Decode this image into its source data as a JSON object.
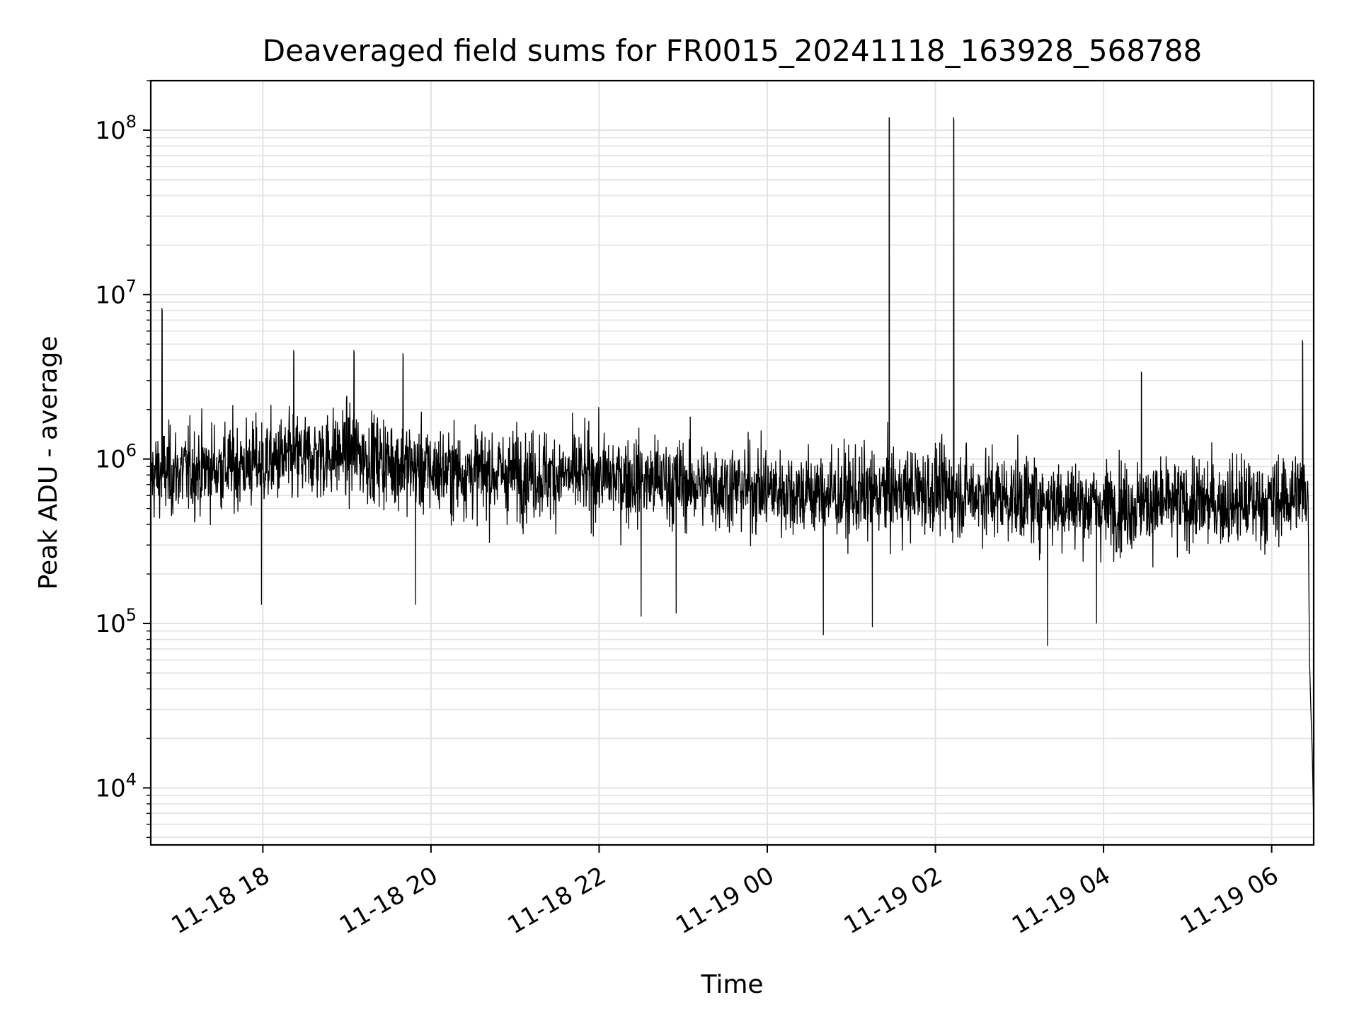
{
  "chart_data": {
    "type": "line",
    "title": "Deaveraged field sums for FR0015_20241118_163928_568788",
    "xlabel": "Time",
    "ylabel": "Peak ADU - average",
    "x_scale": "time",
    "y_scale": "log",
    "xlim": [
      "2024-11-18 16:40",
      "2024-11-19 06:30"
    ],
    "ylim": [
      4500,
      200000000
    ],
    "grid": true,
    "x_ticks": [
      {
        "value": "2024-11-18 18:00",
        "label": "11-18 18"
      },
      {
        "value": "2024-11-18 20:00",
        "label": "11-18 20"
      },
      {
        "value": "2024-11-18 22:00",
        "label": "11-18 22"
      },
      {
        "value": "2024-11-19 00:00",
        "label": "11-19 00"
      },
      {
        "value": "2024-11-19 02:00",
        "label": "11-19 02"
      },
      {
        "value": "2024-11-19 04:00",
        "label": "11-19 04"
      },
      {
        "value": "2024-11-19 06:00",
        "label": "11-19 06"
      }
    ],
    "y_ticks": [
      {
        "value": 10000,
        "base": "10",
        "exp": "4"
      },
      {
        "value": 100000,
        "base": "10",
        "exp": "5"
      },
      {
        "value": 1000000,
        "base": "10",
        "exp": "6"
      },
      {
        "value": 10000000,
        "base": "10",
        "exp": "7"
      },
      {
        "value": 100000000,
        "base": "10",
        "exp": "8"
      }
    ],
    "series": [
      {
        "color": "#000000",
        "baseline": [
          [
            "2024-11-18 16:40",
            800000
          ],
          [
            "2024-11-18 18:00",
            950000
          ],
          [
            "2024-11-18 19:00",
            1100000
          ],
          [
            "2024-11-18 20:00",
            850000
          ],
          [
            "2024-11-18 22:00",
            780000
          ],
          [
            "2024-11-19 00:00",
            650000
          ],
          [
            "2024-11-19 01:00",
            600000
          ],
          [
            "2024-11-19 02:00",
            650000
          ],
          [
            "2024-11-19 04:00",
            520000
          ],
          [
            "2024-11-19 06:00",
            550000
          ],
          [
            "2024-11-19 06:25",
            650000
          ]
        ],
        "spikes": [
          [
            "2024-11-18 16:48",
            8300000
          ],
          [
            "2024-11-18 18:22",
            4600000
          ],
          [
            "2024-11-18 19:05",
            4600000
          ],
          [
            "2024-11-18 19:40",
            4400000
          ],
          [
            "2024-11-19 01:27",
            120000000
          ],
          [
            "2024-11-19 02:13",
            120000000
          ],
          [
            "2024-11-19 04:27",
            3400000
          ],
          [
            "2024-11-19 06:22",
            5300000
          ]
        ],
        "dips": [
          [
            "2024-11-18 17:59",
            130000
          ],
          [
            "2024-11-18 19:49",
            130000
          ],
          [
            "2024-11-18 22:30",
            110000
          ],
          [
            "2024-11-18 22:55",
            115000
          ],
          [
            "2024-11-19 00:40",
            85000
          ],
          [
            "2024-11-19 01:15",
            95000
          ],
          [
            "2024-11-19 03:20",
            73000
          ],
          [
            "2024-11-19 03:55",
            100000
          ]
        ],
        "end_tail": [
          [
            "2024-11-19 06:26",
            600000
          ],
          [
            "2024-11-19 06:27",
            60000
          ],
          [
            "2024-11-19 06:28",
            30000
          ],
          [
            "2024-11-19 06:29",
            16000
          ],
          [
            "2024-11-19 06:30",
            6000
          ]
        ]
      }
    ]
  }
}
